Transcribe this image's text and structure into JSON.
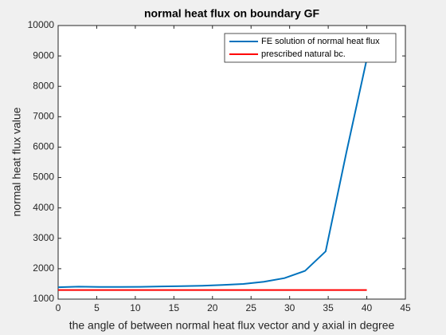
{
  "chart_data": {
    "type": "line",
    "title": "normal heat flux on boundary GF",
    "xlabel": "the angle of between normal heat flux vector and y axial in degree",
    "ylabel": "normal heat flux value",
    "series": [
      {
        "name": "FE solution of normal heat flux",
        "color": "#0072bd",
        "x": [
          0,
          2.667,
          5.333,
          8,
          10.667,
          13.333,
          16,
          18.667,
          21.333,
          24,
          26.667,
          29.333,
          32,
          34.667,
          37.333,
          40
        ],
        "values": [
          1390,
          1410,
          1400,
          1400,
          1405,
          1415,
          1425,
          1440,
          1465,
          1500,
          1570,
          1690,
          1930,
          2570,
          5800,
          8900
        ]
      },
      {
        "name": "prescribed natural bc.",
        "color": "#ff0000",
        "x": [
          0,
          40
        ],
        "values": [
          1300,
          1300
        ]
      }
    ],
    "xlim": [
      0,
      45
    ],
    "xticks": [
      0,
      5,
      10,
      15,
      20,
      25,
      30,
      35,
      40,
      45
    ],
    "ylim": [
      1000,
      10000
    ],
    "yticks": [
      1000,
      2000,
      3000,
      4000,
      5000,
      6000,
      7000,
      8000,
      9000,
      10000
    ],
    "legend": "northeast"
  }
}
